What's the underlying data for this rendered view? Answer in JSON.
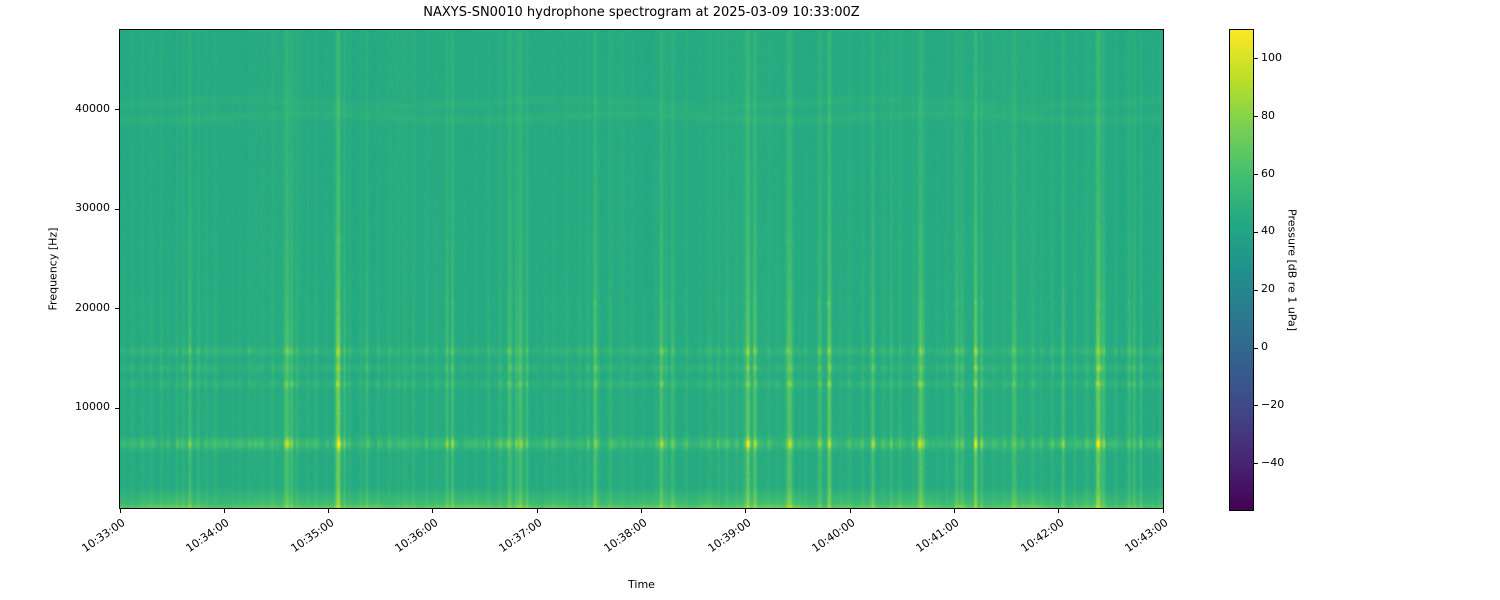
{
  "figure": {
    "title": "NAXYS-SN0010 hydrophone spectrogram at 2025-03-09 10:33:00Z",
    "xlabel": "Time",
    "ylabel": "Frequency [Hz]",
    "colorbar_label": "Pressure [dB re 1 uPa]"
  },
  "chart_data": {
    "type": "heatmap",
    "subtype": "hydrophone-spectrogram",
    "title": "NAXYS-SN0010 hydrophone spectrogram at 2025-03-09 10:33:00Z",
    "station": "NAXYS-SN0010",
    "start_time_utc": "2025-03-09 10:33:00Z",
    "xlabel": "Time",
    "ylabel": "Frequency [Hz]",
    "x_tick_labels": [
      "10:33:00",
      "10:34:00",
      "10:35:00",
      "10:36:00",
      "10:37:00",
      "10:38:00",
      "10:39:00",
      "10:40:00",
      "10:41:00",
      "10:42:00",
      "10:43:00"
    ],
    "y_tick_values": [
      10000,
      20000,
      30000,
      40000
    ],
    "y_tick_labels": [
      "10000",
      "20000",
      "30000",
      "40000"
    ],
    "freq_range_hz": [
      0,
      48000
    ],
    "duration_s": 600,
    "grid": false,
    "colormap": "viridis",
    "viridis_stops": [
      "#440154",
      "#482475",
      "#414487",
      "#355f8d",
      "#2a788e",
      "#21918c",
      "#22a884",
      "#44bf70",
      "#7ad151",
      "#bddf26",
      "#fde725"
    ],
    "colorbar": {
      "label": "Pressure [dB re 1 uPa]",
      "position": "right",
      "vmin": -56,
      "vmax": 110,
      "ticks": [
        {
          "value": 100,
          "label": "100"
        },
        {
          "value": 80,
          "label": "80"
        },
        {
          "value": 60,
          "label": "60"
        },
        {
          "value": 40,
          "label": "40"
        },
        {
          "value": 20,
          "label": "20"
        },
        {
          "value": 0,
          "label": "0"
        },
        {
          "value": -20,
          "label": "−20"
        },
        {
          "value": -40,
          "label": "−40"
        }
      ]
    },
    "background_level_db": 45.5,
    "tonal_bands": [
      {
        "freq_hz": 6500,
        "bandwidth_hz": 900,
        "peak_db_above_bg": 28,
        "pattern": "dashed"
      },
      {
        "freq_hz": 12500,
        "bandwidth_hz": 600,
        "peak_db_above_bg": 13,
        "pattern": "dashed"
      },
      {
        "freq_hz": 14100,
        "bandwidth_hz": 600,
        "peak_db_above_bg": 12,
        "pattern": "dashed"
      },
      {
        "freq_hz": 15800,
        "bandwidth_hz": 700,
        "peak_db_above_bg": 15,
        "pattern": "dashed"
      },
      {
        "freq_hz": 20600,
        "bandwidth_hz": 500,
        "peak_db_above_bg": 8,
        "pattern": "sparse-dots"
      },
      {
        "freq_hz": 26800,
        "bandwidth_hz": 600,
        "peak_db_above_bg": 6,
        "pattern": "sparse-dots"
      },
      {
        "freq_hz": 39300,
        "bandwidth_hz": 800,
        "peak_db_above_bg": 5,
        "pattern": "continuous-wavy"
      },
      {
        "freq_hz": 40700,
        "bandwidth_hz": 700,
        "peak_db_above_bg": 4,
        "pattern": "continuous-wavy"
      }
    ],
    "broadband_transients": {
      "typical_spacing_s": 6,
      "strong_event_times": [
        "10:34:36",
        "10:35:05",
        "10:36:50",
        "10:37:33",
        "10:38:11",
        "10:39:01",
        "10:39:25",
        "10:39:48",
        "10:40:13",
        "10:40:40",
        "10:41:12",
        "10:42:23"
      ]
    },
    "low_frequency_noise": {
      "below_hz": 2200,
      "extra_db_at_bottom": 24
    },
    "render_seed": 1337
  }
}
